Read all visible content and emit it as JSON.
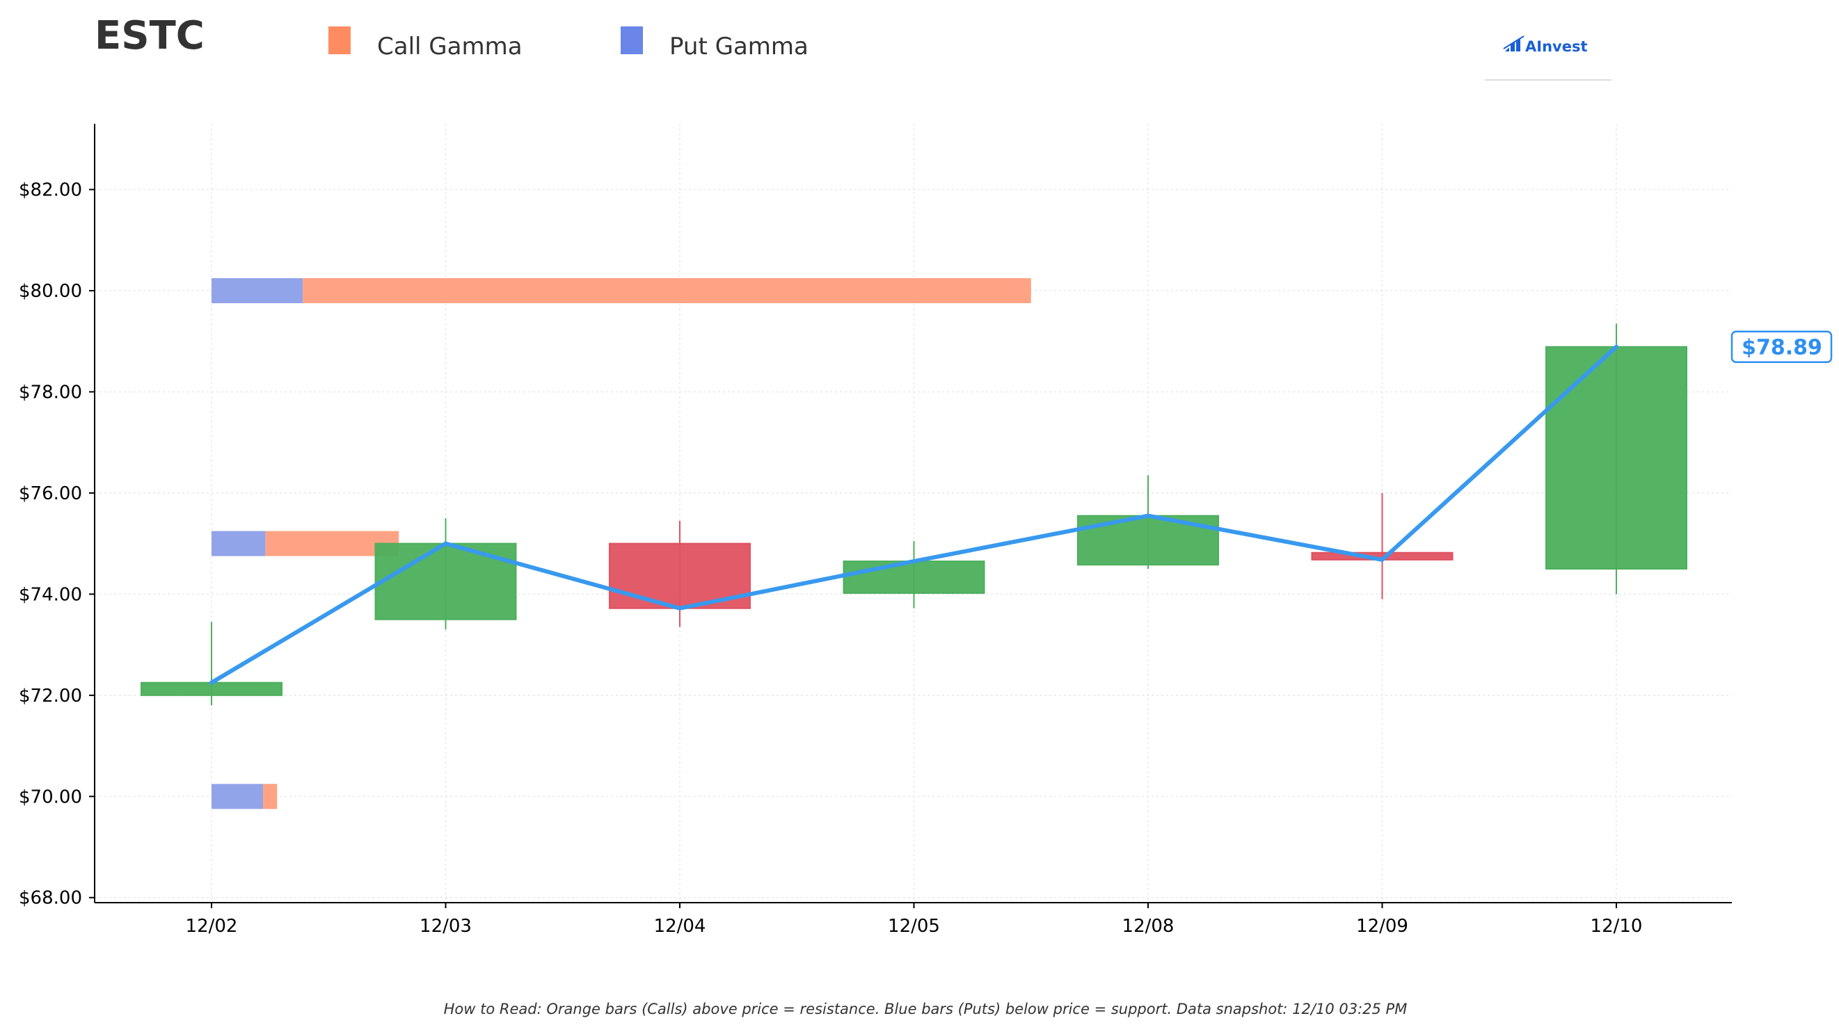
{
  "colors": {
    "up": "#4caf5c",
    "down": "#e05261",
    "call": "#ff9e7d",
    "put": "#8c9fe8",
    "call_legend": "#ff8c60",
    "put_legend": "#6a86e8",
    "price_line": "#3899ee",
    "axis": "#000000",
    "grid": "#e8e8e8"
  },
  "header": {
    "title": "ESTC",
    "legend": [
      {
        "name": "Call Gamma",
        "color": "#ff8c60"
      },
      {
        "name": "Put Gamma",
        "color": "#6a86e8"
      }
    ],
    "logo": "AInvest"
  },
  "footnote": "How to Read: Orange bars (Calls) above price = resistance. Blue bars (Puts) below price = support. Data snapshot: 12/10 03:25 PM",
  "chart_data": {
    "type": "candlestick",
    "title": "ESTC",
    "xlabel": "",
    "ylabel": "",
    "categories": [
      "12/02",
      "12/03",
      "12/04",
      "12/05",
      "12/08",
      "12/09",
      "12/10"
    ],
    "ylim": [
      67.9,
      83.3
    ],
    "yticks": [
      68,
      70,
      72,
      74,
      76,
      78,
      80,
      82
    ],
    "ytick_labels": [
      "$68.00",
      "$70.00",
      "$72.00",
      "$74.00",
      "$76.00",
      "$78.00",
      "$80.00",
      "$82.00"
    ],
    "grid": true,
    "candles": [
      {
        "date": "12/02",
        "open": 72.0,
        "high": 73.45,
        "low": 71.8,
        "close": 72.25
      },
      {
        "date": "12/03",
        "open": 73.5,
        "high": 75.5,
        "low": 73.3,
        "close": 75.0
      },
      {
        "date": "12/04",
        "open": 75.0,
        "high": 75.45,
        "low": 73.35,
        "close": 73.72
      },
      {
        "date": "12/05",
        "open": 74.02,
        "high": 75.05,
        "low": 73.72,
        "close": 74.65
      },
      {
        "date": "12/08",
        "open": 74.58,
        "high": 76.35,
        "low": 74.5,
        "close": 75.55
      },
      {
        "date": "12/09",
        "open": 74.82,
        "high": 76.0,
        "low": 73.9,
        "close": 74.68
      },
      {
        "date": "12/10",
        "open": 74.5,
        "high": 79.35,
        "low": 74.0,
        "close": 78.89
      }
    ],
    "price_line": [
      72.25,
      75.0,
      73.72,
      74.65,
      75.55,
      74.68,
      78.89
    ],
    "current_price_label": "$78.89",
    "gamma_levels": [
      {
        "strike": 80.0,
        "put": 0.39,
        "call": 3.11
      },
      {
        "strike": 75.0,
        "put": 0.23,
        "call": 0.57
      },
      {
        "strike": 70.0,
        "put": 0.22,
        "call": 0.06
      }
    ],
    "gamma_units": "x-axis category widths",
    "legend_position": "top"
  }
}
